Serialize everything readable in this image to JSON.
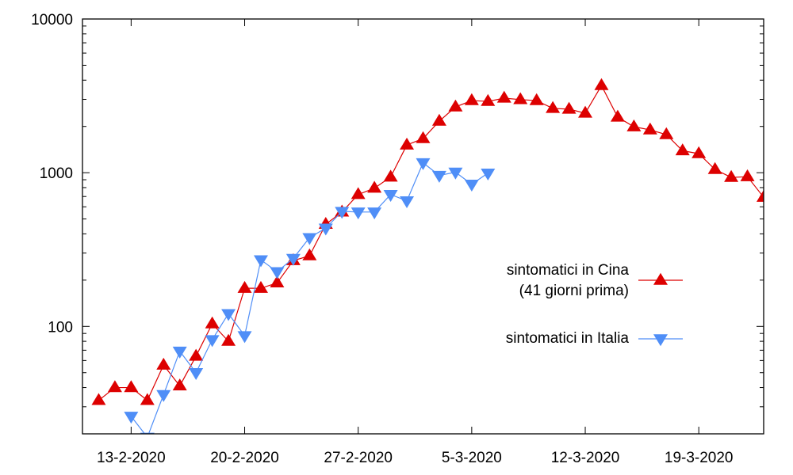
{
  "chart_data": {
    "type": "line",
    "title": "",
    "xlabel": "",
    "ylabel": "",
    "yscale": "log",
    "ylim": [
      20,
      10000
    ],
    "xlim": [
      "10-2-2020",
      "23-3-2020"
    ],
    "grid": false,
    "legend_position": "center-right",
    "x_ticks": [
      "13-2-2020",
      "20-2-2020",
      "27-2-2020",
      "5-3-2020",
      "12-3-2020",
      "19-3-2020"
    ],
    "y_ticks": [
      "100",
      "1000",
      "10000"
    ],
    "x": [
      "11-2",
      "12-2",
      "13-2",
      "14-2",
      "15-2",
      "16-2",
      "17-2",
      "18-2",
      "19-2",
      "20-2",
      "21-2",
      "22-2",
      "23-2",
      "24-2",
      "25-2",
      "26-2",
      "27-2",
      "28-2",
      "29-2",
      "1-3",
      "2-3",
      "3-3",
      "4-3",
      "5-3",
      "6-3",
      "7-3",
      "8-3",
      "9-3",
      "10-3",
      "11-3",
      "12-3",
      "13-3",
      "14-3",
      "15-3",
      "16-3",
      "17-3",
      "18-3",
      "19-3",
      "20-3",
      "21-3",
      "22-3",
      "23-3"
    ],
    "series": [
      {
        "name": "sintomatici in Cina\n(41 giorni prima)",
        "legend_lines": [
          "sintomatici in Cina",
          "(41 giorni prima)"
        ],
        "color": "#dd0000",
        "marker": "triangle-up",
        "start_index": 0,
        "values": [
          33,
          40,
          40,
          33,
          56,
          41,
          64,
          104,
          80,
          177,
          177,
          192,
          268,
          288,
          462,
          555,
          721,
          793,
          937,
          1515,
          1667,
          2163,
          2680,
          2945,
          2910,
          3055,
          2990,
          2945,
          2620,
          2590,
          2440,
          3690,
          2300,
          1990,
          1900,
          1770,
          1390,
          1330,
          1050,
          932,
          942,
          692
        ]
      },
      {
        "name": "sintomatici in Italia",
        "legend_lines": [
          "sintomatici in Italia"
        ],
        "color": "#4f8ef7",
        "marker": "triangle-down",
        "start_index": 2,
        "values": [
          26,
          19,
          36,
          69,
          50,
          82,
          121,
          87,
          271,
          227,
          277,
          378,
          436,
          560,
          555,
          555,
          721,
          656,
          1160,
          960,
          1008,
          841,
          994
        ]
      }
    ]
  }
}
